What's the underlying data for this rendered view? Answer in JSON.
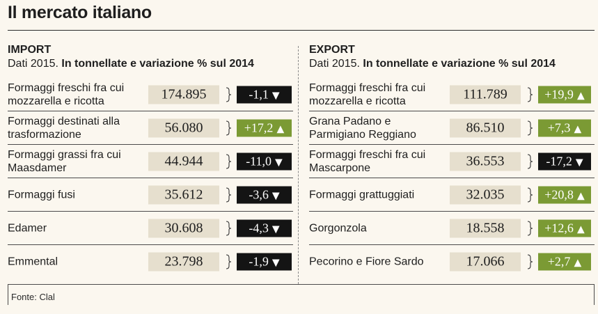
{
  "title": "Il mercato italiano",
  "source": "Fonte: Clal",
  "colors": {
    "positive": "#7b9a34",
    "negative": "#141414",
    "value_bg": "#e6dfce"
  },
  "chart_data": [
    {
      "type": "table",
      "title": "IMPORT",
      "subtitle_prefix": "Dati 2015.",
      "subtitle_bold": "In tonnellate e variazione % sul 2014",
      "rows": [
        {
          "label": "Formaggi freschi fra cui mozzarella e ricotta",
          "value": "174.895",
          "change": "-1,1",
          "direction": "down"
        },
        {
          "label": "Formaggi destinati alla trasformazione",
          "value": "56.080",
          "change": "+17,2",
          "direction": "up"
        },
        {
          "label": "Formaggi grassi fra cui Maasdamer",
          "value": "44.944",
          "change": "-11,0",
          "direction": "down"
        },
        {
          "label": "Formaggi fusi",
          "value": "35.612",
          "change": "-3,6",
          "direction": "down"
        },
        {
          "label": "Edamer",
          "value": "30.608",
          "change": "-4,3",
          "direction": "down"
        },
        {
          "label": "Emmental",
          "value": "23.798",
          "change": "-1,9",
          "direction": "down"
        }
      ]
    },
    {
      "type": "table",
      "title": "EXPORT",
      "subtitle_prefix": "Dati 2015.",
      "subtitle_bold": "In tonnellate e variazione % sul 2014",
      "rows": [
        {
          "label": "Formaggi freschi fra cui mozzarella e ricotta",
          "value": "111.789",
          "change": "+19,9",
          "direction": "up"
        },
        {
          "label": "Grana Padano e Parmigiano Reggiano",
          "value": "86.510",
          "change": "+7,3",
          "direction": "up"
        },
        {
          "label": "Formaggi freschi fra cui Mascarpone",
          "value": "36.553",
          "change": "-17,2",
          "direction": "down"
        },
        {
          "label": "Formaggi grattuggiati",
          "value": "32.035",
          "change": "+20,8",
          "direction": "up"
        },
        {
          "label": "Gorgonzola",
          "value": "18.558",
          "change": "+12,6",
          "direction": "up"
        },
        {
          "label": "Pecorino e Fiore Sardo",
          "value": "17.066",
          "change": "+2,7",
          "direction": "up"
        }
      ]
    }
  ]
}
